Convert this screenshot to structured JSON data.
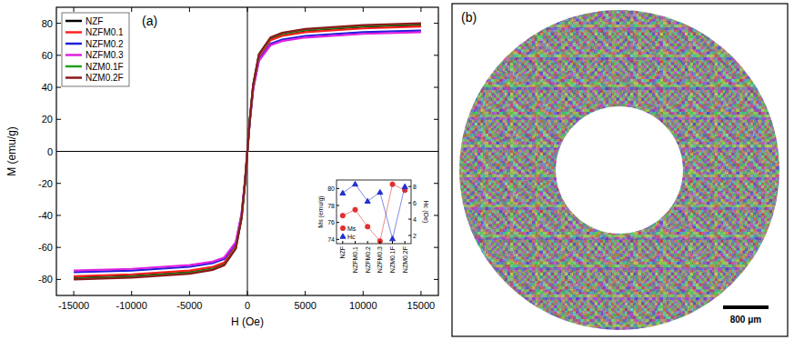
{
  "chart_data": [
    {
      "type": "line",
      "x_label": "H (Oe)",
      "y_label": "M (emu/g)",
      "annotations": [
        "(a)"
      ],
      "x": [
        -15000,
        -10000,
        -5000,
        -3000,
        -2000,
        -1000,
        -500,
        -200,
        0,
        200,
        500,
        1000,
        2000,
        3000,
        5000,
        10000,
        15000
      ],
      "series": [
        {
          "name": "NZF",
          "color": "#000000",
          "line_style": "solid",
          "values": [
            -79,
            -77.8,
            -75.4,
            -73.1,
            -70.3,
            -60.0,
            -41.1,
            -19.0,
            0,
            19.0,
            41.1,
            60.0,
            70.3,
            73.1,
            75.4,
            77.8,
            79
          ]
        },
        {
          "name": "NZFM0.1",
          "color": "#ff2020",
          "line_style": "solid",
          "values": [
            -78,
            -76.8,
            -74.5,
            -72.2,
            -69.4,
            -59.3,
            -40.6,
            -18.7,
            0,
            18.7,
            40.6,
            59.3,
            69.4,
            72.2,
            74.5,
            76.8,
            78
          ]
        },
        {
          "name": "NZFM0.2",
          "color": "#1f1fdd",
          "line_style": "solid",
          "values": [
            -75.5,
            -74.4,
            -72.1,
            -69.8,
            -67.2,
            -57.4,
            -39.3,
            -18.1,
            0,
            18.1,
            39.3,
            57.4,
            67.2,
            69.8,
            72.1,
            74.4,
            75.5
          ]
        },
        {
          "name": "NZFM0.3",
          "color": "#e020e0",
          "line_style": "solid",
          "values": [
            -74.5,
            -73.4,
            -71.1,
            -68.9,
            -66.3,
            -56.6,
            -38.7,
            -17.9,
            0,
            17.9,
            38.7,
            56.6,
            66.3,
            68.9,
            71.1,
            73.4,
            74.5
          ]
        },
        {
          "name": "NZM0.1F",
          "color": "#20a020",
          "line_style": "solid",
          "values": [
            -79.5,
            -78.3,
            -75.9,
            -73.5,
            -70.8,
            -60.4,
            -41.3,
            -19.1,
            0,
            19.1,
            41.3,
            60.4,
            70.8,
            73.5,
            75.9,
            78.3,
            79.5
          ]
        },
        {
          "name": "NZM0.2F",
          "color": "#8b1a1a",
          "line_style": "solid",
          "values": [
            -80,
            -78.8,
            -76.4,
            -74.0,
            -71.2,
            -60.8,
            -41.6,
            -19.2,
            0,
            19.2,
            41.6,
            60.8,
            71.2,
            74.0,
            76.4,
            78.8,
            80
          ]
        }
      ],
      "xlim": [
        -16500,
        16500
      ],
      "xticks": [
        -15000,
        -10000,
        -5000,
        0,
        5000,
        10000,
        15000
      ],
      "ylim": [
        -90,
        90
      ],
      "yticks": [
        -80,
        -60,
        -40,
        -20,
        0,
        20,
        40,
        60,
        80
      ],
      "grid": false,
      "legend": "upper left"
    },
    {
      "type": "line",
      "y_label": "Ms (emu/g)",
      "y2_label": "Hc (Oe)",
      "categories": [
        "NZF",
        "NZFM0.1",
        "NZFM0.2",
        "NZFM0.3",
        "NZM0.1F",
        "NZM0.2F"
      ],
      "series": [
        {
          "name": "Ms",
          "color": "#e03030",
          "marker": "circle",
          "line_style": "solid",
          "values": [
            76.8,
            77.5,
            75.5,
            73.8,
            80.5,
            79.8
          ]
        },
        {
          "name": "Hc",
          "color": "#2030d0",
          "marker": "triangle",
          "line_style": "solid",
          "axis": "y2",
          "values": [
            7.2,
            8.3,
            6.2,
            7.3,
            1.6,
            8.0
          ]
        }
      ],
      "ylim": [
        73.5,
        81
      ],
      "yticks": [
        74,
        76,
        78,
        80
      ],
      "y2lim": [
        1,
        8.8
      ],
      "y2ticks": [
        2,
        4,
        6,
        8
      ],
      "grid": false,
      "legend": "lower left"
    }
  ],
  "image_panel": {
    "label": "(b)",
    "scale_bar": "800 μm"
  }
}
